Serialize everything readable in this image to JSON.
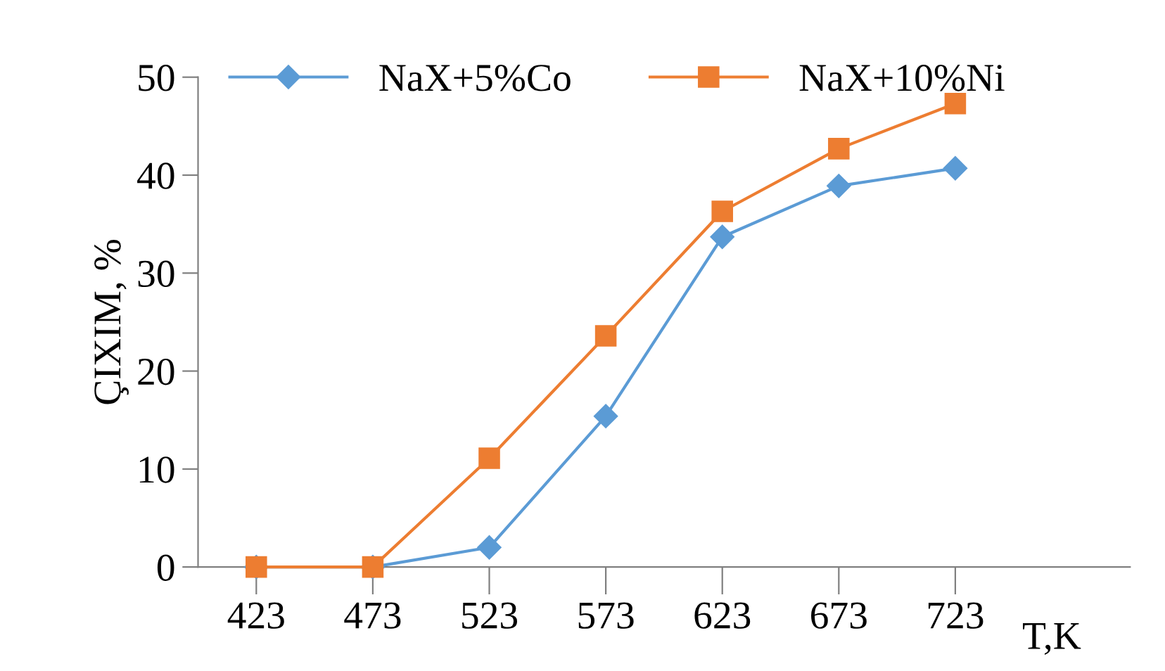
{
  "chart_data": {
    "type": "line",
    "xlabel": "T,K",
    "ylabel": "ÇIXIM, %",
    "categories": [
      "423",
      "473",
      "523",
      "573",
      "623",
      "673",
      "723"
    ],
    "series": [
      {
        "name": "NaX+5%Co",
        "color": "#5b9bd5",
        "marker": "diamond",
        "values": [
          0,
          0,
          2,
          15.4,
          33.7,
          38.9,
          40.7
        ]
      },
      {
        "name": "NaX+10%Ni",
        "color": "#ed7d31",
        "marker": "square",
        "values": [
          0,
          0,
          11.1,
          23.6,
          36.3,
          42.7,
          47.3
        ]
      }
    ],
    "ylim": [
      0,
      50
    ],
    "yticks": [
      0,
      10,
      20,
      30,
      40,
      50
    ],
    "grid": false,
    "legend": "top"
  }
}
